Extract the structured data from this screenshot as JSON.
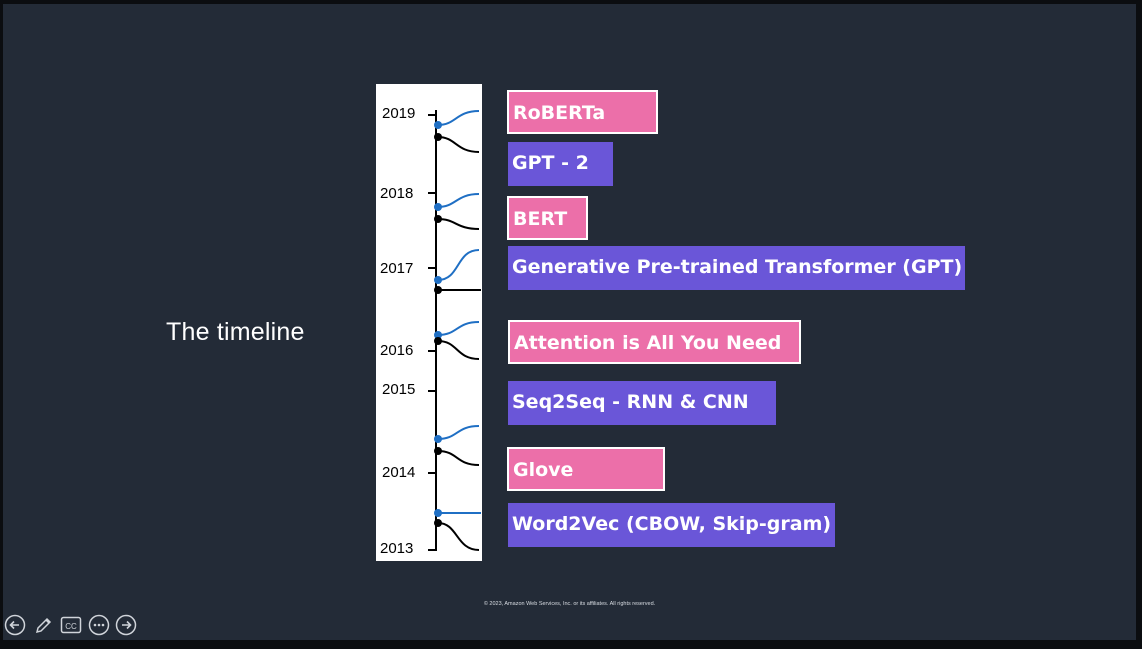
{
  "slide": {
    "title": "The timeline",
    "footer": "© 2023, Amazon Web Services, Inc. or its affiliates. All rights reserved."
  },
  "timeline": {
    "years": [
      "2019",
      "2018",
      "2017",
      "2016",
      "2015",
      "2014",
      "2013"
    ]
  },
  "milestones": [
    {
      "label": "RoBERTa",
      "color": "pink"
    },
    {
      "label": "GPT - 2",
      "color": "purple"
    },
    {
      "label": "BERT",
      "color": "pink"
    },
    {
      "label": "Generative Pre-trained Transformer (GPT)",
      "color": "purple"
    },
    {
      "label": "Attention is All You Need",
      "color": "pink"
    },
    {
      "label": "Seq2Seq - RNN & CNN",
      "color": "purple"
    },
    {
      "label": "Glove",
      "color": "pink"
    },
    {
      "label": "Word2Vec (CBOW, Skip-gram)",
      "color": "purple"
    }
  ],
  "colors": {
    "pink": "#ec6fa9",
    "purple": "#6a56d8",
    "background": "#232b37",
    "branch_blue": "#1f6fc4"
  },
  "controls": {
    "icons": [
      "arrow-left-icon",
      "pen-icon",
      "closed-captions-icon",
      "more-options-icon",
      "arrow-right-icon"
    ],
    "cc_label": "CC"
  }
}
